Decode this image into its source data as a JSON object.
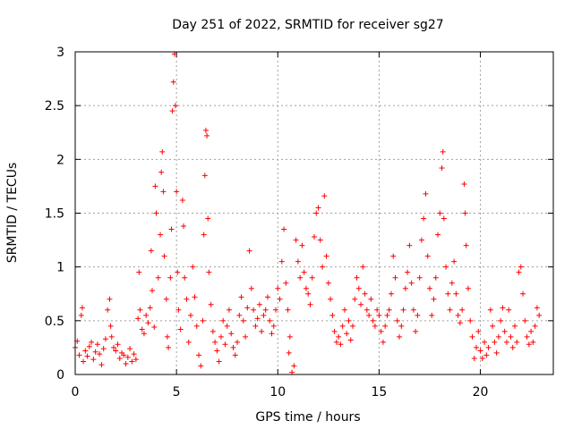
{
  "chart_data": {
    "type": "scatter",
    "title": "Day 251 of 2022, SRMTID for receiver sg27",
    "xlabel": "GPS time / hours",
    "ylabel": "SRMTID / TECUs",
    "xlim": [
      0,
      23.6
    ],
    "ylim": [
      0,
      3
    ],
    "xticks": [
      0,
      5,
      10,
      15,
      20
    ],
    "xtick_labels": [
      "0",
      "5",
      "10",
      "15",
      "20"
    ],
    "yticks": [
      0,
      0.5,
      1,
      1.5,
      2,
      2.5,
      3
    ],
    "ytick_labels": [
      "0",
      "0.5",
      "1",
      "1.5",
      "2",
      "2.5",
      "3"
    ],
    "grid": true,
    "marker": "plus",
    "color": "#ff0000",
    "series": [
      {
        "name": "SRMTID",
        "points": [
          [
            0.0,
            0.25
          ],
          [
            0.1,
            0.31
          ],
          [
            0.2,
            0.18
          ],
          [
            0.3,
            0.55
          ],
          [
            0.35,
            0.62
          ],
          [
            0.4,
            0.12
          ],
          [
            0.5,
            0.22
          ],
          [
            0.6,
            0.17
          ],
          [
            0.7,
            0.26
          ],
          [
            0.8,
            0.3
          ],
          [
            0.9,
            0.14
          ],
          [
            1.0,
            0.21
          ],
          [
            1.1,
            0.28
          ],
          [
            1.2,
            0.19
          ],
          [
            1.3,
            0.09
          ],
          [
            1.4,
            0.24
          ],
          [
            1.5,
            0.33
          ],
          [
            1.6,
            0.6
          ],
          [
            1.7,
            0.7
          ],
          [
            1.75,
            0.45
          ],
          [
            1.8,
            0.35
          ],
          [
            1.9,
            0.25
          ],
          [
            2.0,
            0.22
          ],
          [
            2.1,
            0.28
          ],
          [
            2.2,
            0.15
          ],
          [
            2.3,
            0.2
          ],
          [
            2.4,
            0.18
          ],
          [
            2.5,
            0.1
          ],
          [
            2.6,
            0.16
          ],
          [
            2.7,
            0.24
          ],
          [
            2.8,
            0.12
          ],
          [
            2.9,
            0.19
          ],
          [
            3.0,
            0.14
          ],
          [
            3.1,
            0.52
          ],
          [
            3.15,
            0.95
          ],
          [
            3.2,
            0.6
          ],
          [
            3.3,
            0.42
          ],
          [
            3.4,
            0.38
          ],
          [
            3.5,
            0.55
          ],
          [
            3.6,
            0.48
          ],
          [
            3.7,
            0.62
          ],
          [
            3.75,
            1.15
          ],
          [
            3.8,
            0.78
          ],
          [
            3.9,
            0.44
          ],
          [
            3.95,
            1.75
          ],
          [
            4.0,
            1.5
          ],
          [
            4.1,
            0.9
          ],
          [
            4.2,
            1.3
          ],
          [
            4.25,
            1.88
          ],
          [
            4.3,
            2.07
          ],
          [
            4.35,
            1.7
          ],
          [
            4.4,
            1.1
          ],
          [
            4.5,
            0.7
          ],
          [
            4.55,
            0.35
          ],
          [
            4.6,
            0.25
          ],
          [
            4.7,
            0.9
          ],
          [
            4.75,
            1.35
          ],
          [
            4.8,
            2.45
          ],
          [
            4.85,
            2.72
          ],
          [
            4.9,
            2.98
          ],
          [
            4.95,
            2.5
          ],
          [
            5.0,
            1.7
          ],
          [
            5.05,
            0.95
          ],
          [
            5.1,
            0.6
          ],
          [
            5.2,
            0.42
          ],
          [
            5.3,
            1.62
          ],
          [
            5.35,
            1.38
          ],
          [
            5.4,
            0.9
          ],
          [
            5.5,
            0.7
          ],
          [
            5.6,
            0.3
          ],
          [
            5.7,
            0.55
          ],
          [
            5.8,
            1.0
          ],
          [
            5.9,
            0.72
          ],
          [
            6.0,
            0.45
          ],
          [
            6.1,
            0.18
          ],
          [
            6.2,
            0.08
          ],
          [
            6.3,
            0.5
          ],
          [
            6.35,
            1.3
          ],
          [
            6.4,
            1.85
          ],
          [
            6.45,
            2.27
          ],
          [
            6.5,
            2.22
          ],
          [
            6.55,
            1.45
          ],
          [
            6.6,
            0.95
          ],
          [
            6.7,
            0.65
          ],
          [
            6.8,
            0.4
          ],
          [
            6.9,
            0.3
          ],
          [
            7.0,
            0.22
          ],
          [
            7.1,
            0.12
          ],
          [
            7.2,
            0.35
          ],
          [
            7.3,
            0.5
          ],
          [
            7.4,
            0.28
          ],
          [
            7.5,
            0.45
          ],
          [
            7.6,
            0.6
          ],
          [
            7.7,
            0.38
          ],
          [
            7.8,
            0.25
          ],
          [
            7.9,
            0.18
          ],
          [
            8.0,
            0.3
          ],
          [
            8.1,
            0.55
          ],
          [
            8.2,
            0.72
          ],
          [
            8.3,
            0.5
          ],
          [
            8.4,
            0.35
          ],
          [
            8.5,
            0.62
          ],
          [
            8.6,
            1.15
          ],
          [
            8.7,
            0.8
          ],
          [
            8.8,
            0.6
          ],
          [
            8.9,
            0.45
          ],
          [
            9.0,
            0.52
          ],
          [
            9.1,
            0.65
          ],
          [
            9.2,
            0.4
          ],
          [
            9.3,
            0.55
          ],
          [
            9.4,
            0.6
          ],
          [
            9.5,
            0.72
          ],
          [
            9.6,
            0.5
          ],
          [
            9.7,
            0.38
          ],
          [
            9.8,
            0.45
          ],
          [
            9.9,
            0.6
          ],
          [
            10.0,
            0.8
          ],
          [
            10.1,
            0.7
          ],
          [
            10.2,
            1.05
          ],
          [
            10.3,
            1.35
          ],
          [
            10.4,
            0.85
          ],
          [
            10.5,
            0.6
          ],
          [
            10.55,
            0.2
          ],
          [
            10.6,
            0.35
          ],
          [
            10.7,
            0.02
          ],
          [
            10.8,
            0.08
          ],
          [
            10.9,
            1.25
          ],
          [
            11.0,
            1.05
          ],
          [
            11.1,
            0.9
          ],
          [
            11.2,
            1.2
          ],
          [
            11.3,
            0.95
          ],
          [
            11.4,
            0.8
          ],
          [
            11.5,
            0.75
          ],
          [
            11.6,
            0.65
          ],
          [
            11.7,
            0.9
          ],
          [
            11.8,
            1.28
          ],
          [
            11.9,
            1.5
          ],
          [
            12.0,
            1.55
          ],
          [
            12.1,
            1.25
          ],
          [
            12.2,
            1.0
          ],
          [
            12.3,
            1.66
          ],
          [
            12.4,
            1.1
          ],
          [
            12.5,
            0.85
          ],
          [
            12.6,
            0.7
          ],
          [
            12.7,
            0.55
          ],
          [
            12.8,
            0.4
          ],
          [
            12.9,
            0.3
          ],
          [
            13.0,
            0.35
          ],
          [
            13.1,
            0.28
          ],
          [
            13.2,
            0.45
          ],
          [
            13.3,
            0.6
          ],
          [
            13.4,
            0.38
          ],
          [
            13.5,
            0.5
          ],
          [
            13.6,
            0.32
          ],
          [
            13.7,
            0.45
          ],
          [
            13.8,
            0.7
          ],
          [
            13.9,
            0.9
          ],
          [
            14.0,
            0.8
          ],
          [
            14.1,
            0.65
          ],
          [
            14.2,
            1.0
          ],
          [
            14.3,
            0.75
          ],
          [
            14.4,
            0.6
          ],
          [
            14.5,
            0.55
          ],
          [
            14.6,
            0.7
          ],
          [
            14.7,
            0.5
          ],
          [
            14.8,
            0.45
          ],
          [
            14.9,
            0.6
          ],
          [
            15.0,
            0.55
          ],
          [
            15.1,
            0.4
          ],
          [
            15.2,
            0.3
          ],
          [
            15.3,
            0.45
          ],
          [
            15.4,
            0.55
          ],
          [
            15.5,
            0.6
          ],
          [
            15.6,
            0.75
          ],
          [
            15.7,
            1.1
          ],
          [
            15.8,
            0.9
          ],
          [
            15.9,
            0.5
          ],
          [
            16.0,
            0.35
          ],
          [
            16.1,
            0.45
          ],
          [
            16.2,
            0.6
          ],
          [
            16.3,
            0.8
          ],
          [
            16.4,
            0.95
          ],
          [
            16.5,
            1.2
          ],
          [
            16.6,
            0.85
          ],
          [
            16.7,
            0.6
          ],
          [
            16.8,
            0.4
          ],
          [
            16.9,
            0.55
          ],
          [
            17.0,
            0.9
          ],
          [
            17.1,
            1.25
          ],
          [
            17.2,
            1.45
          ],
          [
            17.3,
            1.68
          ],
          [
            17.4,
            1.1
          ],
          [
            17.5,
            0.8
          ],
          [
            17.6,
            0.55
          ],
          [
            17.7,
            0.7
          ],
          [
            17.8,
            0.9
          ],
          [
            17.9,
            1.3
          ],
          [
            18.0,
            1.5
          ],
          [
            18.1,
            1.92
          ],
          [
            18.15,
            2.07
          ],
          [
            18.2,
            1.45
          ],
          [
            18.3,
            1.0
          ],
          [
            18.4,
            0.75
          ],
          [
            18.5,
            0.6
          ],
          [
            18.6,
            0.85
          ],
          [
            18.7,
            1.05
          ],
          [
            18.8,
            0.75
          ],
          [
            18.9,
            0.55
          ],
          [
            19.0,
            0.48
          ],
          [
            19.1,
            0.6
          ],
          [
            19.2,
            1.77
          ],
          [
            19.25,
            1.5
          ],
          [
            19.3,
            1.2
          ],
          [
            19.4,
            0.8
          ],
          [
            19.5,
            0.5
          ],
          [
            19.6,
            0.35
          ],
          [
            19.7,
            0.15
          ],
          [
            19.8,
            0.25
          ],
          [
            19.9,
            0.4
          ],
          [
            20.0,
            0.22
          ],
          [
            20.1,
            0.15
          ],
          [
            20.2,
            0.3
          ],
          [
            20.3,
            0.18
          ],
          [
            20.4,
            0.25
          ],
          [
            20.5,
            0.6
          ],
          [
            20.6,
            0.45
          ],
          [
            20.7,
            0.3
          ],
          [
            20.8,
            0.2
          ],
          [
            20.9,
            0.35
          ],
          [
            21.0,
            0.5
          ],
          [
            21.1,
            0.62
          ],
          [
            21.2,
            0.4
          ],
          [
            21.3,
            0.3
          ],
          [
            21.4,
            0.6
          ],
          [
            21.5,
            0.35
          ],
          [
            21.6,
            0.25
          ],
          [
            21.7,
            0.45
          ],
          [
            21.8,
            0.3
          ],
          [
            21.9,
            0.95
          ],
          [
            22.0,
            1.0
          ],
          [
            22.1,
            0.75
          ],
          [
            22.2,
            0.5
          ],
          [
            22.3,
            0.35
          ],
          [
            22.4,
            0.28
          ],
          [
            22.5,
            0.4
          ],
          [
            22.6,
            0.3
          ],
          [
            22.7,
            0.45
          ],
          [
            22.8,
            0.62
          ],
          [
            22.9,
            0.55
          ]
        ]
      }
    ]
  }
}
